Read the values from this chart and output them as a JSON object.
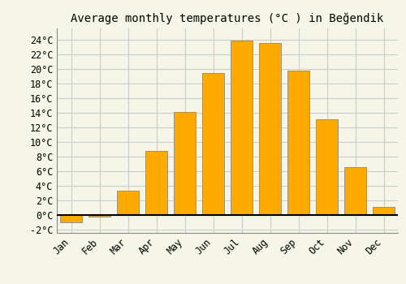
{
  "title": "Average monthly temperatures (°C ) in Beğendik",
  "months": [
    "Jan",
    "Feb",
    "Mar",
    "Apr",
    "May",
    "Jun",
    "Jul",
    "Aug",
    "Sep",
    "Oct",
    "Nov",
    "Dec"
  ],
  "temperatures": [
    -1.0,
    -0.3,
    3.3,
    8.7,
    14.1,
    19.4,
    23.8,
    23.5,
    19.7,
    13.1,
    6.5,
    1.1
  ],
  "bar_color": "#FFAA00",
  "bar_edge_color": "#888888",
  "background_color": "#F5F5E8",
  "plot_bg_color": "#F5F5E8",
  "grid_color": "#CCCCCC",
  "ylim": [
    -2.5,
    25.5
  ],
  "yticks": [
    -2,
    0,
    2,
    4,
    6,
    8,
    10,
    12,
    14,
    16,
    18,
    20,
    22,
    24
  ],
  "title_fontsize": 10,
  "tick_fontsize": 8.5,
  "zero_line_color": "#000000",
  "bar_width": 0.75
}
